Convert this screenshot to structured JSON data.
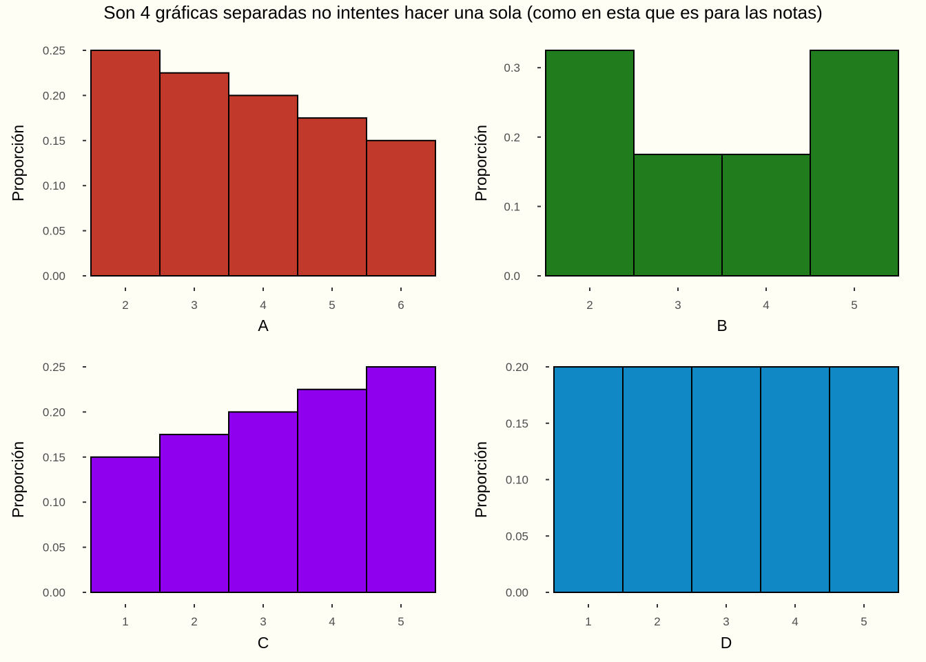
{
  "title": "Son 4 gráficas separadas no intentes hacer una sola (como en esta que es para las notas)",
  "chart_data": [
    {
      "type": "bar",
      "categories": [
        "2",
        "3",
        "4",
        "5",
        "6"
      ],
      "values": [
        0.25,
        0.225,
        0.2,
        0.175,
        0.15
      ],
      "xlabel": "A",
      "ylabel": "Proporción",
      "ylim": [
        0,
        0.25
      ],
      "yticks": [
        0.0,
        0.05,
        0.1,
        0.15,
        0.2,
        0.25
      ],
      "ytick_labels": [
        "0.00",
        "0.05",
        "0.10",
        "0.15",
        "0.20",
        "0.25"
      ],
      "color": "#c0392b",
      "grid": false
    },
    {
      "type": "bar",
      "categories": [
        "2",
        "3",
        "4",
        "5"
      ],
      "values": [
        0.325,
        0.175,
        0.175,
        0.325
      ],
      "xlabel": "B",
      "ylabel": "Proporción",
      "ylim": [
        0,
        0.325
      ],
      "yticks": [
        0.0,
        0.1,
        0.2,
        0.3
      ],
      "ytick_labels": [
        "0.0",
        "0.1",
        "0.2",
        "0.3"
      ],
      "color": "#217c1d",
      "grid": false
    },
    {
      "type": "bar",
      "categories": [
        "1",
        "2",
        "3",
        "4",
        "5"
      ],
      "values": [
        0.15,
        0.175,
        0.2,
        0.225,
        0.25
      ],
      "xlabel": "C",
      "ylabel": "Proporción",
      "ylim": [
        0,
        0.25
      ],
      "yticks": [
        0.0,
        0.05,
        0.1,
        0.15,
        0.2,
        0.25
      ],
      "ytick_labels": [
        "0.00",
        "0.05",
        "0.10",
        "0.15",
        "0.20",
        "0.25"
      ],
      "color": "#8e00ee",
      "grid": false
    },
    {
      "type": "bar",
      "categories": [
        "1",
        "2",
        "3",
        "4",
        "5"
      ],
      "values": [
        0.2,
        0.2,
        0.2,
        0.2,
        0.2
      ],
      "xlabel": "D",
      "ylabel": "Proporción",
      "ylim": [
        0,
        0.2
      ],
      "yticks": [
        0.0,
        0.05,
        0.1,
        0.15,
        0.2
      ],
      "ytick_labels": [
        "0.00",
        "0.05",
        "0.10",
        "0.15",
        "0.20"
      ],
      "color": "#1188c6",
      "grid": false
    }
  ]
}
